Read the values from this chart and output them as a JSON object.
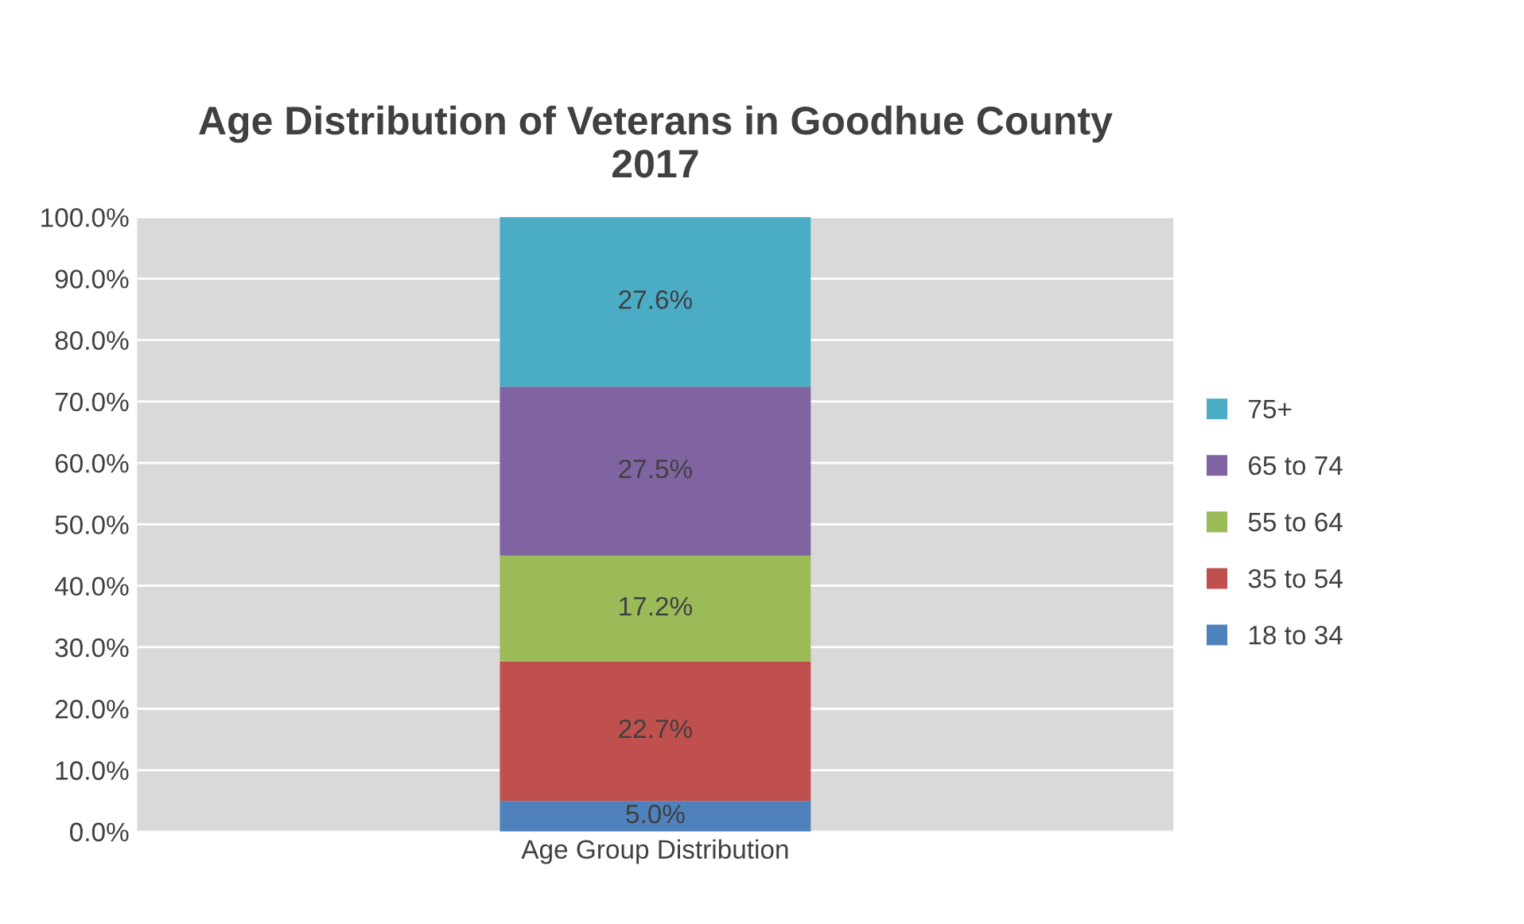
{
  "chart_data": {
    "type": "bar",
    "title": "Age Distribution of Veterans in Goodhue County\n2017",
    "categories": [
      "Age Group Distribution"
    ],
    "stacked": true,
    "series": [
      {
        "name": "18 to 34",
        "color": "#4f81bd",
        "values": [
          5.0
        ],
        "value_labels": [
          "5.0%"
        ]
      },
      {
        "name": "35 to 54",
        "color": "#c0504d",
        "values": [
          22.7
        ],
        "value_labels": [
          "22.7%"
        ]
      },
      {
        "name": "55 to 64",
        "color": "#9bbb59",
        "values": [
          17.2
        ],
        "value_labels": [
          "17.2%"
        ]
      },
      {
        "name": "65 to 74",
        "color": "#8064a2",
        "values": [
          27.5
        ],
        "value_labels": [
          "27.5%"
        ]
      },
      {
        "name": "75+",
        "color": "#4bacc6",
        "values": [
          27.6
        ],
        "value_labels": [
          "27.6%"
        ]
      }
    ],
    "ylim": [
      0,
      100
    ],
    "yticks": [
      {
        "value": 0,
        "label": "0.0%"
      },
      {
        "value": 10,
        "label": "10.0%"
      },
      {
        "value": 20,
        "label": "20.0%"
      },
      {
        "value": 30,
        "label": "30.0%"
      },
      {
        "value": 40,
        "label": "40.0%"
      },
      {
        "value": 50,
        "label": "50.0%"
      },
      {
        "value": 60,
        "label": "60.0%"
      },
      {
        "value": 70,
        "label": "70.0%"
      },
      {
        "value": 80,
        "label": "80.0%"
      },
      {
        "value": 90,
        "label": "90.0%"
      },
      {
        "value": 100,
        "label": "100.0%"
      }
    ],
    "grid": "y",
    "legend": "right"
  }
}
